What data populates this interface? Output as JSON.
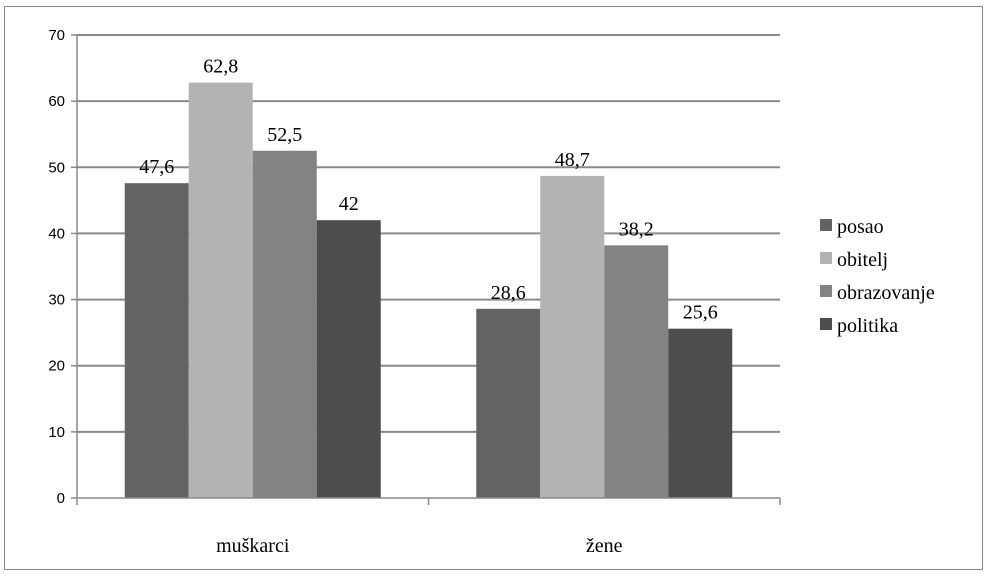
{
  "chart_data": {
    "type": "bar",
    "categories": [
      "muškarci",
      "žene"
    ],
    "series": [
      {
        "name": "posao",
        "values": [
          47.6,
          28.6
        ],
        "labels": [
          "47,6",
          "28,6"
        ],
        "color": "#636363"
      },
      {
        "name": "obitelj",
        "values": [
          62.8,
          48.7
        ],
        "labels": [
          "62,8",
          "48,7"
        ],
        "color": "#b3b3b3"
      },
      {
        "name": "obrazovanje",
        "values": [
          52.5,
          38.2
        ],
        "labels": [
          "52,5",
          "38,2"
        ],
        "color": "#838383"
      },
      {
        "name": "politika",
        "values": [
          42,
          25.6
        ],
        "labels": [
          "42",
          "25,6"
        ],
        "color": "#4d4d4d"
      }
    ],
    "ylim": [
      0,
      70
    ],
    "yticks": [
      0,
      10,
      20,
      30,
      40,
      50,
      60,
      70
    ],
    "grid": true,
    "legend_position": "right",
    "title": "",
    "xlabel": "",
    "ylabel": ""
  }
}
